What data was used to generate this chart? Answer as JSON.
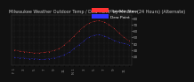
{
  "bg_color": "#111111",
  "plot_bg": "#111111",
  "grid_color": "#555555",
  "temp_color": "#ff3333",
  "dew_color": "#3333ff",
  "legend_temp_label": "Outdoor Temp",
  "legend_dew_label": "Dew Point",
  "ylabel_color": "#aaaaaa",
  "xlabel_color": "#888888",
  "ylim": [
    5,
    85
  ],
  "yticks": [
    20,
    30,
    40,
    50,
    60,
    70,
    80
  ],
  "temp_data": [
    30,
    28,
    27,
    26,
    25,
    25,
    26,
    27,
    29,
    32,
    37,
    44,
    52,
    60,
    67,
    72,
    75,
    76,
    74,
    70,
    64,
    57,
    50,
    44
  ],
  "dew_data": [
    18,
    17,
    17,
    16,
    16,
    15,
    15,
    16,
    17,
    19,
    22,
    26,
    32,
    38,
    44,
    50,
    53,
    54,
    52,
    49,
    45,
    42,
    40,
    38
  ],
  "xtick_labels": [
    "F 1",
    "",
    "3",
    "",
    "5",
    "",
    "7",
    "",
    "9",
    "",
    "11",
    "",
    "N 1",
    "",
    "3",
    "",
    "5",
    "",
    "7",
    "",
    "9",
    "",
    "11",
    ""
  ],
  "title_text": "Milwaukee Weather Outdoor Temp / Dew Point  by Minute  (24 Hours) (Alternate)",
  "title_fontsize": 3.5,
  "tick_fontsize": 3.0,
  "legend_fontsize": 3.2,
  "legend_bar_temp": "#ff3333",
  "legend_bar_dew": "#3333ff"
}
